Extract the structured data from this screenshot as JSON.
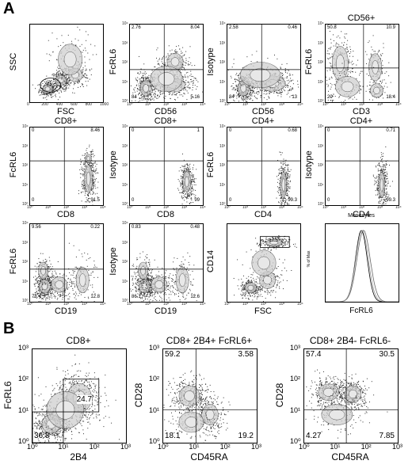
{
  "panel_A": {
    "letter": "A",
    "plots": [
      {
        "id": "a1",
        "title": "",
        "xlabel": "FSC",
        "ylabel": "SSC",
        "quadrants": [
          "",
          "",
          "",
          ""
        ],
        "gate": "76",
        "xticks": [
          "0",
          "200",
          "400",
          "600",
          "800",
          "1000"
        ],
        "kind": "fsc"
      },
      {
        "id": "a2",
        "title": "",
        "xlabel": "CD56",
        "ylabel": "FcRL6",
        "quadrants": [
          "2.76",
          "8.04",
          "84",
          "5.16"
        ],
        "kind": "nk"
      },
      {
        "id": "a3",
        "title": "",
        "xlabel": "CD56",
        "ylabel": "Isotype",
        "quadrants": [
          "2.58",
          "0.46",
          "84",
          "13"
        ],
        "kind": "nkiso"
      },
      {
        "id": "a4",
        "title": "CD56+",
        "xlabel": "CD3",
        "ylabel": "FcRL6",
        "quadrants": [
          "50.8",
          "10.9",
          "20",
          "18.4"
        ],
        "kind": "cd3"
      },
      {
        "id": "a5",
        "title": "CD8+",
        "xlabel": "CD8",
        "ylabel": "FcRL6",
        "quadrants": [
          "0",
          "8.46",
          "0",
          "91.5"
        ],
        "kind": "cd8"
      },
      {
        "id": "a6",
        "title": "CD8+",
        "xlabel": "CD8",
        "ylabel": "Isotype",
        "quadrants": [
          "0",
          "1",
          "0",
          "99"
        ],
        "kind": "cd8iso"
      },
      {
        "id": "a7",
        "title": "CD4+",
        "xlabel": "CD4",
        "ylabel": "FcRL6",
        "quadrants": [
          "0",
          "0.68",
          "0",
          "99.3"
        ],
        "kind": "cd4"
      },
      {
        "id": "a8",
        "title": "CD4+",
        "xlabel": "CD4",
        "ylabel": "Isotype",
        "quadrants": [
          "0",
          "0.71",
          "0",
          "99.3"
        ],
        "kind": "cd4"
      },
      {
        "id": "a9",
        "title": "",
        "xlabel": "CD19",
        "ylabel": "FcRL6",
        "quadrants": [
          "9.56",
          "0.22",
          "78.4",
          "12.8"
        ],
        "kind": "cd19"
      },
      {
        "id": "a10",
        "title": "",
        "xlabel": "CD19",
        "ylabel": "Isotype",
        "quadrants": [
          "0.83",
          "0.48",
          "86.1",
          "12.6"
        ],
        "kind": "cd19"
      },
      {
        "id": "a11",
        "title": "",
        "xlabel": "FSC",
        "ylabel": "CD14",
        "quadrants": [
          "",
          "",
          "",
          ""
        ],
        "gate": "17.5",
        "kind": "cd14"
      },
      {
        "id": "a12",
        "title": "Monocytes",
        "xlabel": "FcRL6",
        "ylabel": "% of Max",
        "quadrants": [
          "",
          "",
          "",
          ""
        ],
        "kind": "hist"
      }
    ],
    "log_ticks": [
      "10⁰",
      "10¹",
      "10²",
      "10³",
      "10⁴"
    ]
  },
  "panel_B": {
    "letter": "B",
    "plots": [
      {
        "id": "b1",
        "title": "CD8+",
        "xlabel": "2B4",
        "ylabel": "FcRL6",
        "quadrants": [
          "",
          "",
          "36.8",
          ""
        ],
        "gate": "24.7",
        "kind": "b2b4"
      },
      {
        "id": "b2",
        "title": "CD8+ 2B4+ FcRL6+",
        "xlabel": "CD45RA",
        "ylabel": "CD28",
        "quadrants": [
          "59.2",
          "3.58",
          "18.1",
          "19.2"
        ],
        "kind": "bcd45a"
      },
      {
        "id": "b3",
        "title": "CD8+ 2B4- FcRL6-",
        "xlabel": "CD45RA",
        "ylabel": "CD28",
        "quadrants": [
          "57.4",
          "30.5",
          "4.27",
          "7.85"
        ],
        "kind": "bcd45b"
      }
    ],
    "log_ticks": [
      "10⁰",
      "10¹",
      "10²",
      "10³"
    ]
  }
}
